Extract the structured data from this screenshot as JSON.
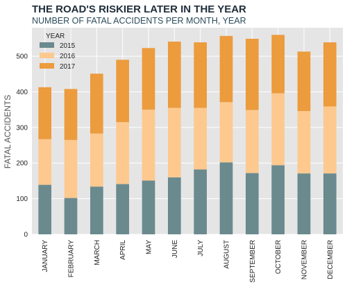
{
  "chart_data": {
    "type": "bar",
    "stacked": true,
    "title": "THE ROAD'S RISKIER LATER IN THE YEAR",
    "subtitle": "NUMBER OF FATAL ACCIDENTS PER MONTH, YEAR",
    "ylabel": "FATAL ACCIDENTS",
    "xlabel": "",
    "ylim": [
      0,
      580
    ],
    "yticks": [
      0,
      100,
      200,
      300,
      400,
      500
    ],
    "grid": true,
    "legend_title": "YEAR",
    "legend_position": "top-left",
    "categories": [
      "JANUARY",
      "FEBRUARY",
      "MARCH",
      "APRIL",
      "MAY",
      "JUNE",
      "JULY",
      "AUGUST",
      "SEPTEMBER",
      "OCTOBER",
      "NOVEMBER",
      "DECEMBER"
    ],
    "series": [
      {
        "name": "2015",
        "color": "#6a8a8e",
        "values": [
          139,
          102,
          134,
          141,
          151,
          160,
          182,
          202,
          172,
          194,
          171,
          171
        ]
      },
      {
        "name": "2016",
        "color": "#fdc98f",
        "values": [
          128,
          163,
          149,
          174,
          199,
          195,
          173,
          169,
          177,
          202,
          175,
          188
        ]
      },
      {
        "name": "2017",
        "color": "#ec9b3d",
        "values": [
          146,
          143,
          168,
          175,
          173,
          186,
          184,
          186,
          200,
          164,
          167,
          180
        ]
      }
    ]
  }
}
